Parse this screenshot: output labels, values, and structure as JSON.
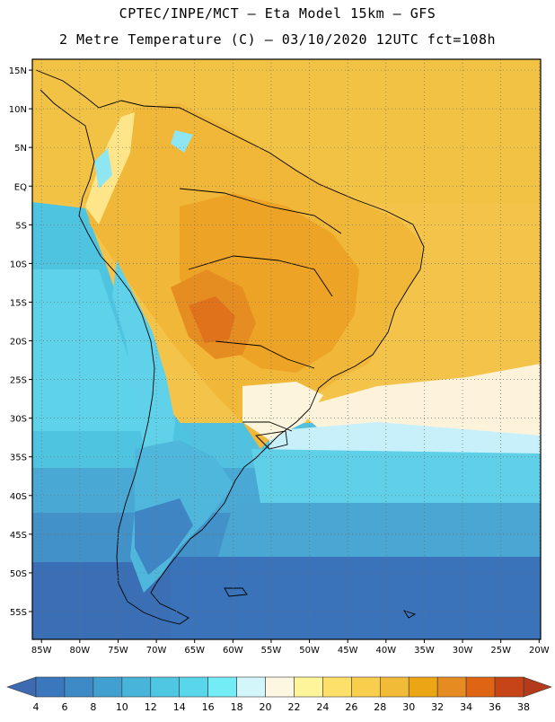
{
  "header": {
    "line1": "CPTEC/INPE/MCT –   Eta Model 15km – GFS",
    "line2": "2 Metre Temperature (C) – 03/10/2020 12UTC fct=108h"
  },
  "axes": {
    "lat_labels": [
      "15N",
      "10N",
      "5N",
      "EQ",
      "5S",
      "10S",
      "15S",
      "20S",
      "25S",
      "30S",
      "35S",
      "40S",
      "45S",
      "50S",
      "55S"
    ],
    "lat_values": [
      15,
      10,
      5,
      0,
      -5,
      -10,
      -15,
      -20,
      -25,
      -30,
      -35,
      -40,
      -45,
      -50,
      -55
    ],
    "lon_labels": [
      "85W",
      "80W",
      "75W",
      "70W",
      "65W",
      "60W",
      "55W",
      "50W",
      "45W",
      "40W",
      "35W",
      "30W",
      "25W",
      "20W"
    ],
    "lon_values": [
      -85,
      -80,
      -75,
      -70,
      -65,
      -60,
      -55,
      -50,
      -45,
      -40,
      -35,
      -30,
      -25,
      -20
    ]
  },
  "legend": {
    "labels": [
      "4",
      "6",
      "8",
      "10",
      "12",
      "14",
      "16",
      "18",
      "20",
      "22",
      "24",
      "26",
      "28",
      "30",
      "32",
      "34",
      "36",
      "38"
    ],
    "colors": [
      "#3a77bd",
      "#3d8ac6",
      "#41a0cf",
      "#48b4da",
      "#4fc6e2",
      "#5ad6ea",
      "#74ecf5",
      "#d3f6fb",
      "#fdf6e0",
      "#fef59a",
      "#fce06a",
      "#f8ce4d",
      "#f1ba37",
      "#eca615",
      "#e68a22",
      "#df6515",
      "#c74418"
    ],
    "low_color": "#3d6ab0",
    "high_color": "#b43a1c"
  },
  "colors": {
    "background": "#ffffff",
    "map_border": "#000000",
    "coast": "#000000",
    "grid": "#707070"
  }
}
